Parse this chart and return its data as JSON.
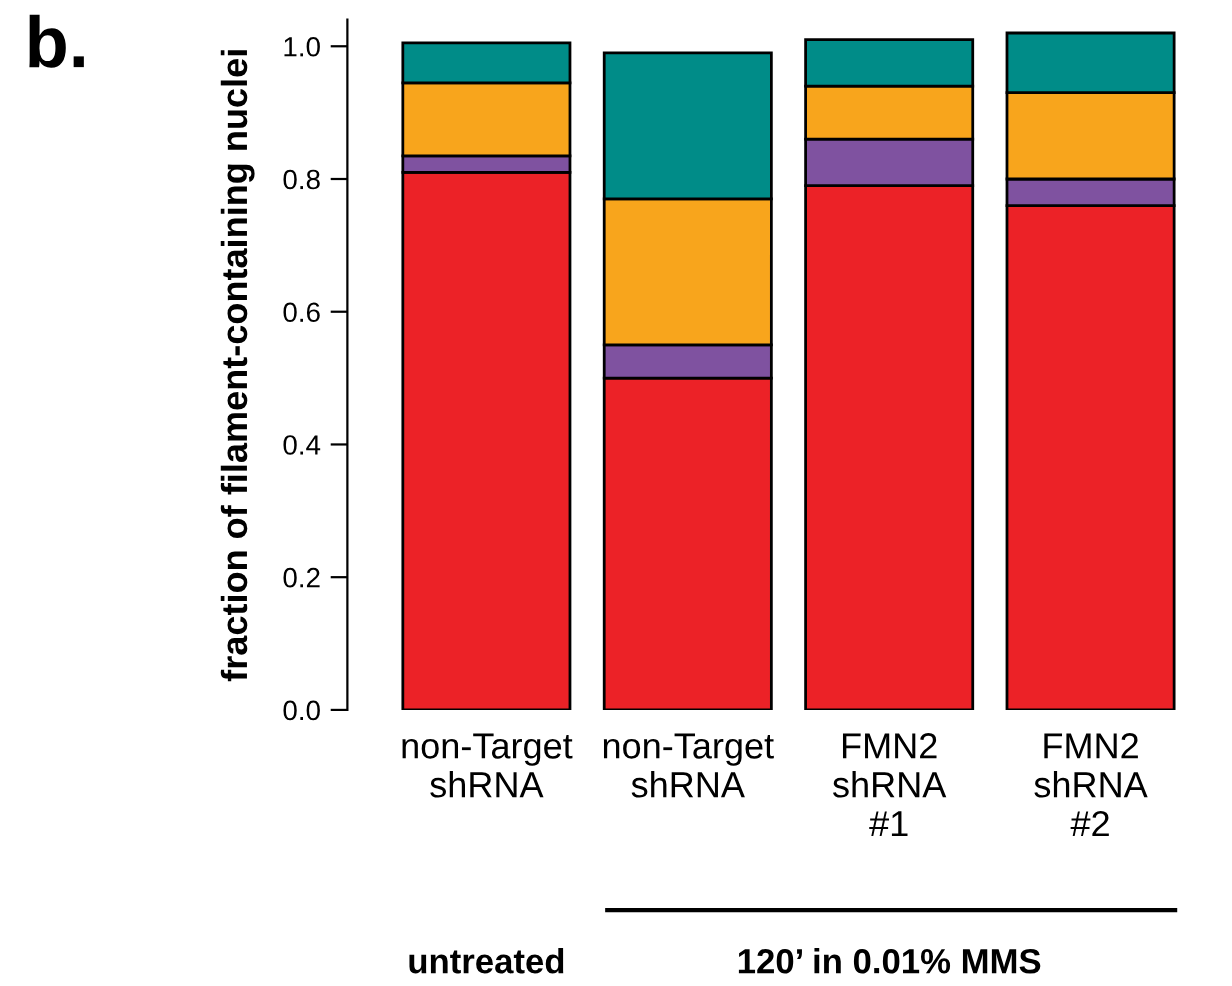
{
  "chart_data": {
    "type": "bar",
    "stacked": true,
    "ylabel": "fraction of filament-containing nuclei",
    "categories": [
      "non-Target\nshRNA",
      "non-Target\nshRNA",
      "FMN2\nshRNA\n#1",
      "FMN2\nshRNA\n#2"
    ],
    "series": [
      {
        "color": "#ec2227",
        "values": [
          0.81,
          0.5,
          0.79,
          0.76
        ]
      },
      {
        "color": "#7f52a0",
        "values": [
          0.025,
          0.05,
          0.07,
          0.04
        ]
      },
      {
        "color": "#f8a51c",
        "values": [
          0.11,
          0.22,
          0.08,
          0.13
        ]
      },
      {
        "color": "#008c88",
        "values": [
          0.06,
          0.22,
          0.07,
          0.09
        ]
      }
    ],
    "ylim": [
      0,
      1.04
    ],
    "yticks": [
      {
        "value": 0,
        "label": "0.0"
      },
      0.2,
      0.4,
      0.6,
      0.8,
      {
        "value": 1,
        "label": "1.0"
      }
    ],
    "grid": false,
    "legend": false,
    "annotations": [
      "b.",
      "untreated",
      "120’ in 0.01% MMS"
    ]
  }
}
